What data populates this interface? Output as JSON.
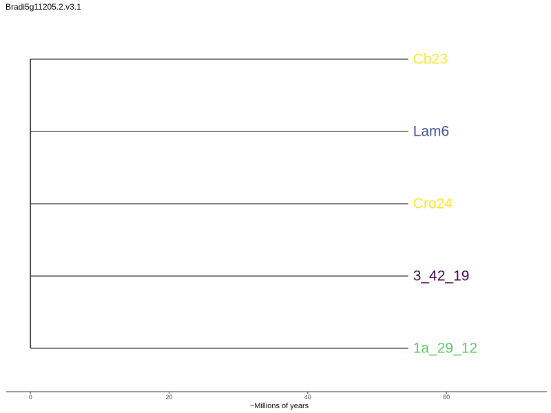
{
  "chart_data": {
    "type": "dendrogram",
    "title": "Bradi5g11205.2.v3.1",
    "xlabel": "~Millions of years",
    "ylabel": "",
    "xlim": [
      -3.5,
      74.5
    ],
    "xticks": [
      0,
      20,
      40,
      60
    ],
    "grid": false,
    "root_x": 0,
    "tips": [
      {
        "label": "Cb23",
        "x": 54.5,
        "color": "#FDE725"
      },
      {
        "label": "Lam6",
        "x": 54.5,
        "color": "#3B528B"
      },
      {
        "label": "Cro24",
        "x": 54.5,
        "color": "#FDE725"
      },
      {
        "label": "3_42_19",
        "x": 54.5,
        "color": "#440154"
      },
      {
        "label": "1a_29_12",
        "x": 54.5,
        "color": "#5DC863"
      }
    ]
  }
}
